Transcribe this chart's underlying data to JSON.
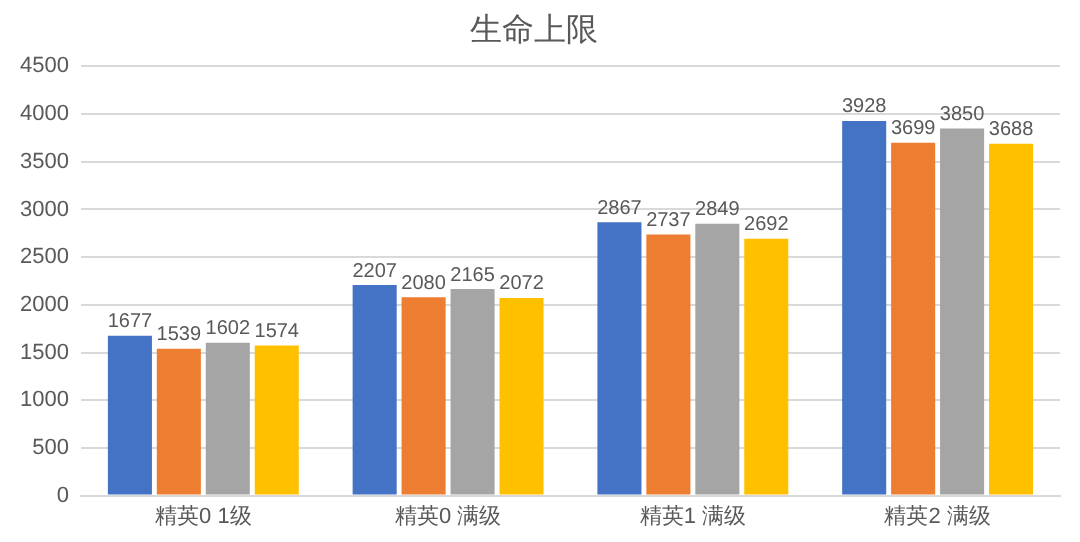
{
  "chart_data": {
    "type": "bar",
    "title": "生命上限",
    "categories": [
      "精英0 1级",
      "精英0 满级",
      "精英1 满级",
      "精英2 满级"
    ],
    "series": [
      {
        "color": "#4472c4",
        "values": [
          1677,
          2207,
          2867,
          3928
        ]
      },
      {
        "color": "#ed7d31",
        "values": [
          1539,
          2080,
          2737,
          3699
        ]
      },
      {
        "color": "#a5a5a5",
        "values": [
          1602,
          2165,
          2849,
          3850
        ]
      },
      {
        "color": "#ffc000",
        "values": [
          1574,
          2072,
          2692,
          3688
        ]
      }
    ],
    "ylim": [
      0,
      4500
    ],
    "yticks": [
      0,
      500,
      1000,
      1500,
      2000,
      2500,
      3000,
      3500,
      4000,
      4500
    ],
    "grid": "y",
    "legend": false,
    "data_labels": true
  }
}
